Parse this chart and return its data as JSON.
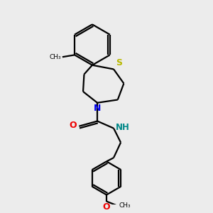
{
  "bg_color": "#ececec",
  "atom_colors": {
    "S": "#b8b800",
    "N": "#0000ee",
    "O": "#ee0000",
    "NH": "#008888",
    "C": "#000000"
  },
  "line_color": "#000000",
  "line_width": 1.6,
  "fig_size": [
    3.0,
    3.0
  ],
  "dpi": 100
}
